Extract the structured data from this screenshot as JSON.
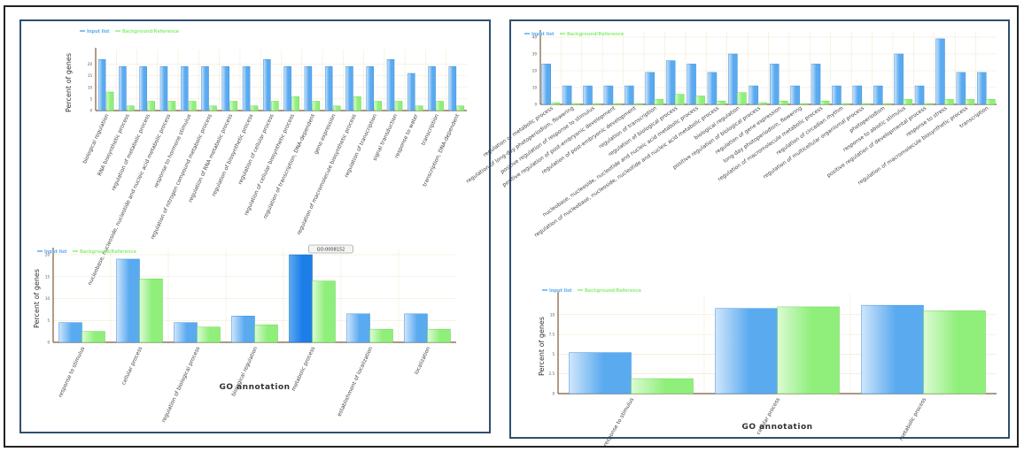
{
  "colors": {
    "input": "#5aaaf0",
    "input_light": "#cfe6fb",
    "ref": "#8fef7a",
    "ref_light": "#dcfbd4",
    "highlight": "#1e7ee8"
  },
  "chart_data": [
    {
      "id": "c1",
      "type": "bar",
      "legend": [
        "Input list",
        "Background/Reference"
      ],
      "legend_position": "top-left",
      "ylabel": "Percent of genes",
      "xlabel": "",
      "yticks": [
        "0",
        "5",
        "10",
        "15",
        "20"
      ],
      "ylim": [
        0,
        24
      ],
      "grid": true,
      "categories": [
        "biological regulation",
        "RNA biosynthetic process",
        "regulation of metabolic process",
        "nucleobase, nucleoside, nucleotide and nucleic acid metabolic process",
        "response to hormone stimulus",
        "regulation of nitrogen compound metabolic process",
        "regulation of RNA metabolic process",
        "regulation of biosynthetic process",
        "regulation of cellular process",
        "regulation of cellular biosynthetic process",
        "regulation of transcription, DNA-dependent",
        "gene expression",
        "regulation of macromolecule biosynthetic process",
        "regulation of transcription",
        "signal transduction",
        "response to water",
        "transcription",
        "transcription, DNA-dependent"
      ],
      "series": [
        {
          "name": "Input list",
          "values": [
            22,
            19,
            19,
            19,
            19,
            19,
            19,
            19,
            22,
            19,
            19,
            19,
            19,
            19,
            22,
            16,
            19,
            19
          ]
        },
        {
          "name": "Background/Reference",
          "values": [
            8,
            2,
            4,
            4,
            4,
            2,
            4,
            2,
            4,
            6,
            4,
            2,
            6,
            4,
            4,
            2,
            4,
            2
          ]
        }
      ]
    },
    {
      "id": "c2",
      "type": "bar",
      "legend": [
        "Input list",
        "Background/Reference"
      ],
      "legend_position": "top-left",
      "ylabel": "Percent of genes",
      "xlabel": "GO annotation",
      "yticks": [
        "0",
        "5",
        "10",
        "15",
        "20"
      ],
      "ylim": [
        0,
        20
      ],
      "grid": true,
      "tooltip": "GO:0008152",
      "categories": [
        "response to stimulus",
        "cellular process",
        "regulation of biological process",
        "biological regulation",
        "metabolic process",
        "establishment of localization",
        "localization"
      ],
      "series": [
        {
          "name": "Input list",
          "values": [
            4.5,
            19,
            4.5,
            6,
            20,
            6.5,
            6.5
          ]
        },
        {
          "name": "Background/Reference",
          "values": [
            2.5,
            14.5,
            3.5,
            4,
            14,
            3,
            3
          ]
        }
      ]
    },
    {
      "id": "c3",
      "type": "bar",
      "legend": [
        "Input list",
        "Background/Reference"
      ],
      "legend_position": "top-left",
      "ylabel": "",
      "xlabel": "",
      "yticks": [
        "0",
        "10",
        "20",
        "30",
        "40"
      ],
      "ylim": [
        0,
        40
      ],
      "grid": true,
      "categories": [
        "regulation of metabolic process",
        "regulation of long-day photoperiodism, flowering",
        "positive regulation of response to stimulus",
        "positive regulation of post-embryonic development",
        "regulation of post-embryonic development",
        "regulation of transcription",
        "regulation of biological process",
        "nucleobase, nucleoside, nucleotide and nucleic acid metabolic process",
        "regulation of nucleobase, nucleoside, nucleotide and nucleic acid metabolic process",
        "biological regulation",
        "positive regulation of biological process",
        "regulation of gene expression",
        "long-day photoperiodism, flowering",
        "regulation of macromolecule metabolic process",
        "regulation of circadian rhythm",
        "regulation of multicellular organismal process",
        "photoperiodism",
        "response to abiotic stimulus",
        "positive regulation of developmental process",
        "response to stress",
        "regulation of macromolecule biosynthetic process",
        "transcription"
      ],
      "series": [
        {
          "name": "Input list",
          "values": [
            24,
            11,
            11,
            11,
            11,
            19,
            26,
            24,
            19,
            30,
            11,
            24,
            11,
            24,
            11,
            11,
            11,
            30,
            11,
            39,
            19,
            19
          ]
        },
        {
          "name": "Background/Reference",
          "values": [
            1,
            0.5,
            0.5,
            0.5,
            0.5,
            3,
            6,
            5,
            2,
            7,
            1,
            2,
            0.5,
            2,
            0.5,
            0.5,
            0.5,
            3,
            0.5,
            3,
            3,
            3
          ]
        }
      ]
    },
    {
      "id": "c4",
      "type": "bar",
      "legend": [
        "Input list",
        "Background/Reference"
      ],
      "legend_position": "top-left",
      "ylabel": "Percent of genes",
      "xlabel": "GO annotation",
      "yticks": [
        "0",
        "2.5",
        "5",
        "7.5",
        "10"
      ],
      "ylim": [
        0,
        12
      ],
      "grid": true,
      "categories": [
        "response to stimulus",
        "cellular process",
        "metabolic process"
      ],
      "series": [
        {
          "name": "Input list",
          "values": [
            5.2,
            10.8,
            11.2
          ]
        },
        {
          "name": "Background/Reference",
          "values": [
            1.9,
            11,
            10.5
          ]
        }
      ]
    }
  ]
}
